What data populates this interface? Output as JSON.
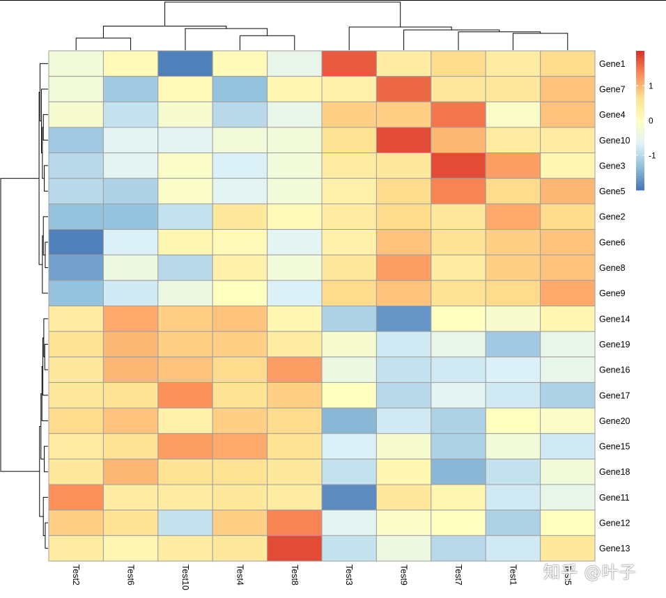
{
  "chart_data": {
    "type": "heatmap",
    "columns": [
      "Test2",
      "Test6",
      "Test10",
      "Test4",
      "Test8",
      "Test3",
      "Test9",
      "Test7",
      "Test1",
      "Test5"
    ],
    "rows": [
      "Gene1",
      "Gene7",
      "Gene4",
      "Gene10",
      "Gene3",
      "Gene5",
      "Gene2",
      "Gene6",
      "Gene8",
      "Gene9",
      "Gene14",
      "Gene19",
      "Gene16",
      "Gene17",
      "Gene20",
      "Gene15",
      "Gene18",
      "Gene11",
      "Gene12",
      "Gene13"
    ],
    "values": [
      [
        -0.3,
        0.1,
        -1.9,
        0.1,
        -0.5,
        1.7,
        0.4,
        0.7,
        0.4,
        0.7
      ],
      [
        -0.3,
        -1.2,
        0.1,
        -1.3,
        0.2,
        0.3,
        1.6,
        0.5,
        0.5,
        0.9
      ],
      [
        -0.2,
        -0.9,
        -0.2,
        -1.0,
        -0.5,
        0.8,
        0.8,
        1.5,
        -0.1,
        0.9
      ],
      [
        -1.2,
        -0.6,
        -0.6,
        -0.3,
        -0.3,
        0.6,
        1.8,
        1.0,
        0.4,
        0.4
      ],
      [
        -1.0,
        -0.6,
        -0.1,
        -0.7,
        -0.3,
        0.4,
        0.5,
        1.8,
        1.2,
        0.2
      ],
      [
        -1.0,
        -1.1,
        -0.1,
        -0.6,
        -0.3,
        0.3,
        0.7,
        1.4,
        0.7,
        1.0
      ],
      [
        -1.3,
        -1.3,
        -0.9,
        0.5,
        0.1,
        0.4,
        0.7,
        0.5,
        1.1,
        0.7
      ],
      [
        -1.9,
        -0.7,
        0.2,
        0.1,
        -0.6,
        0.3,
        0.9,
        0.6,
        0.8,
        0.9
      ],
      [
        -1.6,
        -0.4,
        -1.0,
        0.3,
        -0.3,
        0.5,
        1.2,
        0.4,
        0.8,
        0.9
      ],
      [
        -1.3,
        -0.8,
        -0.4,
        0.0,
        -0.7,
        0.7,
        0.9,
        0.6,
        0.7,
        1.1
      ],
      [
        0.4,
        1.1,
        0.8,
        0.9,
        0.2,
        -1.1,
        -1.7,
        0.0,
        -0.2,
        0.2
      ],
      [
        0.6,
        1.0,
        0.8,
        0.8,
        0.4,
        -0.2,
        -0.8,
        -0.5,
        -1.2,
        -0.5
      ],
      [
        0.5,
        1.0,
        0.9,
        0.7,
        1.2,
        -0.4,
        -0.9,
        -0.8,
        -0.7,
        -0.5
      ],
      [
        0.5,
        0.6,
        1.3,
        0.6,
        0.8,
        0.0,
        -1.0,
        -0.6,
        -0.8,
        -1.1
      ],
      [
        0.7,
        0.9,
        0.3,
        0.8,
        0.7,
        -1.4,
        -0.8,
        -1.1,
        0.0,
        -0.1
      ],
      [
        0.4,
        0.6,
        1.2,
        1.1,
        0.6,
        -0.7,
        -0.2,
        -1.1,
        -0.3,
        -0.8
      ],
      [
        0.5,
        1.0,
        0.6,
        0.6,
        0.5,
        -0.9,
        0.2,
        -1.4,
        -0.9,
        -0.3
      ],
      [
        1.3,
        0.4,
        0.4,
        0.5,
        0.4,
        -1.8,
        0.5,
        0.2,
        -0.8,
        -0.5
      ],
      [
        0.8,
        0.6,
        -0.9,
        0.8,
        1.4,
        -0.6,
        -0.1,
        0.0,
        -1.1,
        0.0
      ],
      [
        0.4,
        0.2,
        0.4,
        0.5,
        1.8,
        -0.9,
        -0.4,
        -1.0,
        -0.8,
        0.5
      ]
    ],
    "scale_range": [
      -2,
      2
    ],
    "legend": {
      "tick_labels": [
        "1",
        "0",
        "-1"
      ],
      "tick_values": [
        1,
        0,
        -1
      ],
      "position": "top-right"
    },
    "colors": {
      "low": "#4575B4",
      "low_mid": "#91BFDB",
      "mid_low": "#E0F3F8",
      "mid": "#FFFFBF",
      "mid_high": "#FEE090",
      "high_mid": "#FC8D59",
      "high": "#D73027",
      "cell_border": "#9E9E9E"
    },
    "column_dendrogram": {
      "leaves": 10,
      "merges": [
        [
          0,
          1,
          0.25
        ],
        [
          3,
          4,
          0.3
        ],
        [
          -2,
          2,
          0.45
        ],
        [
          -1,
          -3,
          0.5
        ],
        [
          8,
          9,
          0.35
        ],
        [
          7,
          -5,
          0.38
        ],
        [
          6,
          -6,
          0.42
        ],
        [
          5,
          -7,
          0.48
        ],
        [
          -4,
          -8,
          1.0
        ]
      ]
    },
    "row_dendrogram": {
      "leaves": 20,
      "merges": [
        [
          4,
          5,
          0.08
        ],
        [
          2,
          3,
          0.1
        ],
        [
          -1,
          -2,
          0.12
        ],
        [
          1,
          -3,
          0.14
        ],
        [
          0,
          -4,
          0.17
        ],
        [
          7,
          8,
          0.06
        ],
        [
          6,
          -6,
          0.1
        ],
        [
          -7,
          9,
          0.12
        ],
        [
          -5,
          -8,
          0.19
        ],
        [
          11,
          12,
          0.07
        ],
        [
          10,
          -10,
          0.09
        ],
        [
          -11,
          13,
          0.11
        ],
        [
          -12,
          14,
          0.13
        ],
        [
          15,
          16,
          0.08
        ],
        [
          -13,
          -14,
          0.15
        ],
        [
          18,
          19,
          0.06
        ],
        [
          17,
          -16,
          0.1
        ],
        [
          -15,
          -17,
          0.18
        ],
        [
          -9,
          -18,
          1.0
        ]
      ]
    }
  },
  "watermark": "知乎 @叶子"
}
